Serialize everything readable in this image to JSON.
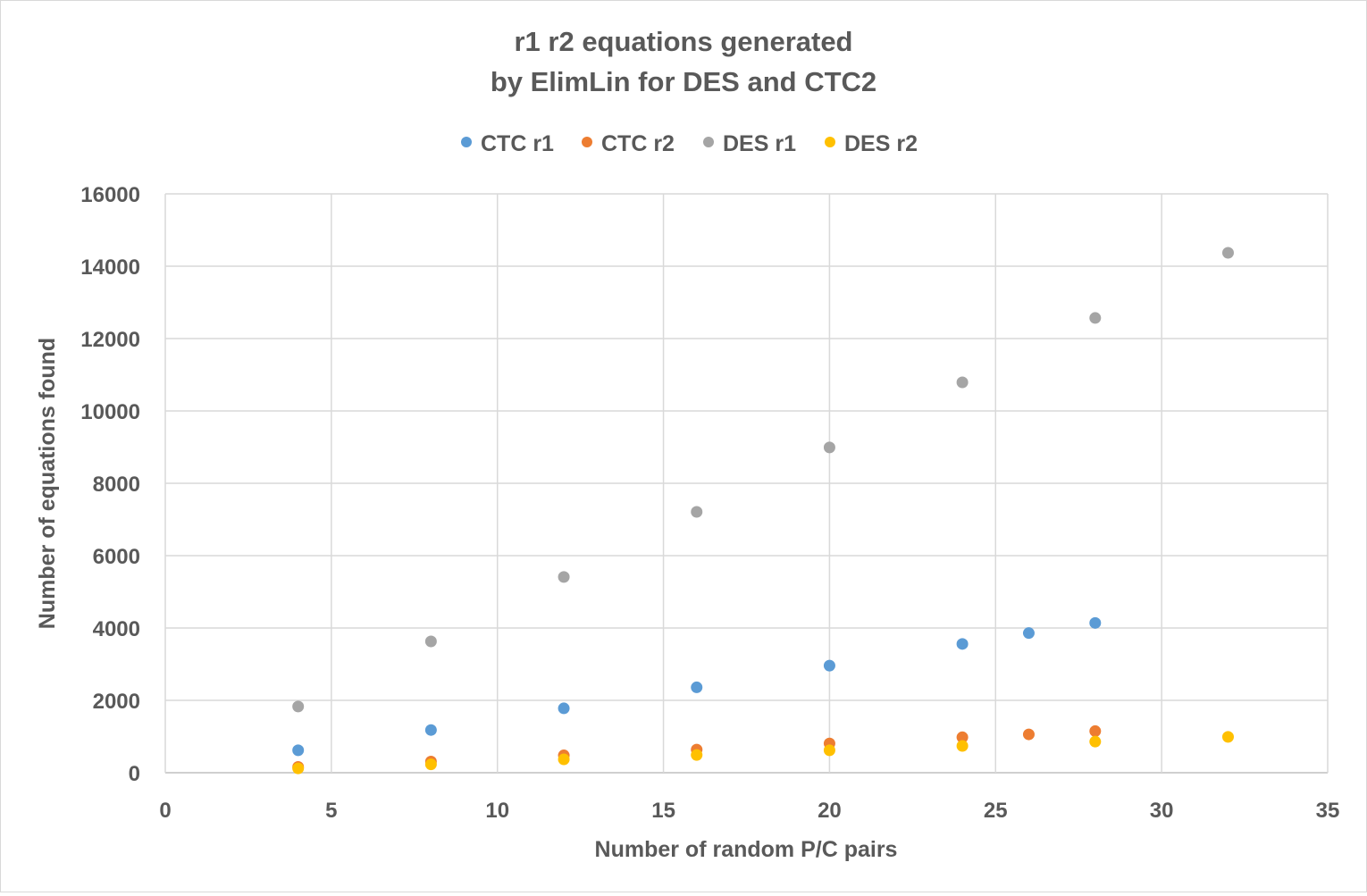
{
  "chart_data": {
    "type": "scatter",
    "title_lines": [
      "r1 r2 equations generated",
      "by ElimLin for DES and CTC2"
    ],
    "xlabel": "Number of random P/C pairs",
    "ylabel": "Number of equations found",
    "xlim": [
      0,
      35
    ],
    "ylim": [
      0,
      16000
    ],
    "xticks": [
      0,
      5,
      10,
      15,
      20,
      25,
      30,
      35
    ],
    "yticks": [
      0,
      2000,
      4000,
      6000,
      8000,
      10000,
      12000,
      14000,
      16000
    ],
    "grid": true,
    "legend_position": "top",
    "series": [
      {
        "name": "CTC r1",
        "color": "#5b9bd5",
        "points": [
          [
            4,
            620
          ],
          [
            8,
            1180
          ],
          [
            12,
            1780
          ],
          [
            16,
            2360
          ],
          [
            20,
            2960
          ],
          [
            24,
            3560
          ],
          [
            26,
            3860
          ],
          [
            28,
            4140
          ]
        ]
      },
      {
        "name": "CTC r2",
        "color": "#ed7d31",
        "points": [
          [
            4,
            160
          ],
          [
            8,
            310
          ],
          [
            12,
            480
          ],
          [
            16,
            640
          ],
          [
            20,
            810
          ],
          [
            24,
            980
          ],
          [
            26,
            1060
          ],
          [
            28,
            1150
          ]
        ]
      },
      {
        "name": "DES r1",
        "color": "#a5a5a5",
        "points": [
          [
            4,
            1830
          ],
          [
            8,
            3630
          ],
          [
            12,
            5410
          ],
          [
            16,
            7210
          ],
          [
            20,
            8990
          ],
          [
            24,
            10790
          ],
          [
            28,
            12570
          ],
          [
            32,
            14370
          ]
        ]
      },
      {
        "name": "DES r2",
        "color": "#ffc000",
        "points": [
          [
            4,
            120
          ],
          [
            8,
            230
          ],
          [
            12,
            370
          ],
          [
            16,
            490
          ],
          [
            20,
            620
          ],
          [
            24,
            740
          ],
          [
            28,
            860
          ],
          [
            32,
            990
          ]
        ]
      }
    ]
  }
}
